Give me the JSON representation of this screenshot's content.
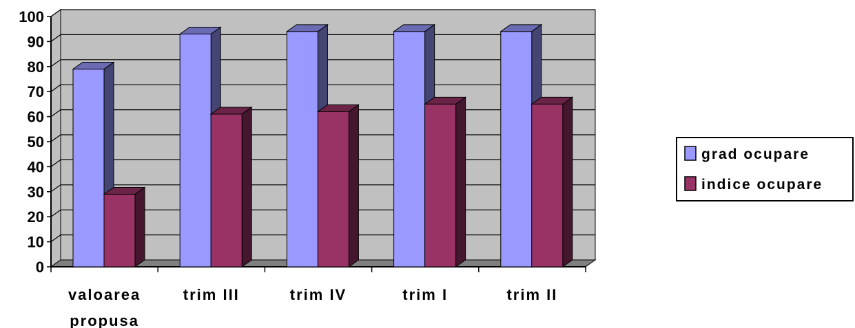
{
  "chart_data": {
    "type": "bar",
    "title": "",
    "xlabel": "",
    "ylabel": "",
    "categories": [
      [
        "valoarea",
        "propusa"
      ],
      [
        "trim III"
      ],
      [
        "trim IV"
      ],
      [
        "trim I"
      ],
      [
        "trim II"
      ]
    ],
    "series": [
      {
        "name": "grad ocupare",
        "values": [
          79,
          93,
          94,
          94,
          94
        ],
        "color": "#9999ff"
      },
      {
        "name": "indice ocupare",
        "values": [
          29,
          61,
          62,
          65,
          65
        ],
        "color": "#993366"
      }
    ],
    "ylim": [
      0,
      100
    ],
    "yticks": [
      "0",
      "10",
      "20",
      "30",
      "40",
      "50",
      "60",
      "70",
      "80",
      "90",
      "100"
    ],
    "grid": true,
    "legend_position": "right",
    "wall_color": "#c0c0c0"
  }
}
